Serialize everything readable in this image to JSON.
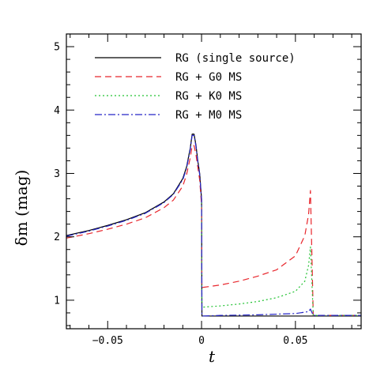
{
  "chart_data": {
    "type": "line",
    "xlabel": "t",
    "ylabel": "δm (mag)",
    "xlim": [
      -0.072,
      0.085
    ],
    "ylim": [
      0.55,
      5.2
    ],
    "x_ticks": [
      -0.05,
      0,
      0.05
    ],
    "x_tick_labels": [
      "−0.05",
      "0",
      "0.05"
    ],
    "y_ticks": [
      1,
      2,
      3,
      4,
      5
    ],
    "y_tick_labels": [
      "1",
      "2",
      "3",
      "4",
      "5"
    ],
    "legend_position": "top-left",
    "series": [
      {
        "name": "RG (single source)",
        "color": "#000000",
        "dash": "solid",
        "x": [
          -0.072,
          -0.06,
          -0.05,
          -0.04,
          -0.03,
          -0.02,
          -0.015,
          -0.01,
          -0.008,
          -0.006,
          -0.005,
          -0.004,
          -0.003,
          -0.002,
          -0.001,
          0.0,
          0.0002,
          0.01,
          0.03,
          0.05,
          0.058,
          0.06,
          0.085
        ],
        "y": [
          2.02,
          2.1,
          2.18,
          2.27,
          2.38,
          2.55,
          2.68,
          2.92,
          3.1,
          3.4,
          3.62,
          3.62,
          3.45,
          3.2,
          3.0,
          2.6,
          0.75,
          0.75,
          0.75,
          0.75,
          0.75,
          0.75,
          0.75
        ]
      },
      {
        "name": "RG + G0 MS",
        "color": "#e8262c",
        "dash": "8,5",
        "x": [
          -0.072,
          -0.06,
          -0.05,
          -0.04,
          -0.03,
          -0.02,
          -0.015,
          -0.01,
          -0.008,
          -0.006,
          -0.005,
          -0.004,
          -0.003,
          -0.002,
          -0.001,
          0.0,
          0.0002,
          0.01,
          0.02,
          0.03,
          0.04,
          0.05,
          0.055,
          0.057,
          0.058,
          0.0595,
          0.06,
          0.085
        ],
        "y": [
          1.98,
          2.05,
          2.12,
          2.2,
          2.3,
          2.46,
          2.58,
          2.8,
          2.98,
          3.25,
          3.44,
          3.44,
          3.3,
          3.1,
          2.9,
          2.5,
          1.2,
          1.24,
          1.3,
          1.38,
          1.48,
          1.7,
          2.02,
          2.35,
          2.73,
          0.76,
          0.76,
          0.76
        ]
      },
      {
        "name": "RG + K0 MS",
        "color": "#22c232",
        "dash": "2,3",
        "x": [
          0.0,
          0.0002,
          0.01,
          0.02,
          0.03,
          0.04,
          0.05,
          0.055,
          0.057,
          0.058,
          0.0595,
          0.06,
          0.085
        ],
        "y": [
          2.55,
          0.89,
          0.91,
          0.94,
          0.98,
          1.04,
          1.14,
          1.3,
          1.55,
          1.84,
          0.76,
          0.76,
          0.76
        ]
      },
      {
        "name": "RG + M0 MS",
        "color": "#2626c8",
        "dash": "9,3,2,3",
        "x": [
          -0.072,
          -0.06,
          -0.05,
          -0.04,
          -0.03,
          -0.02,
          -0.015,
          -0.01,
          -0.008,
          -0.006,
          -0.005,
          -0.004,
          -0.003,
          -0.002,
          -0.001,
          0.0,
          0.0002,
          0.01,
          0.03,
          0.05,
          0.057,
          0.058,
          0.0595,
          0.06,
          0.085
        ],
        "y": [
          2.01,
          2.09,
          2.17,
          2.26,
          2.37,
          2.54,
          2.67,
          2.9,
          3.08,
          3.38,
          3.6,
          3.6,
          3.43,
          3.18,
          2.98,
          2.58,
          0.75,
          0.76,
          0.77,
          0.79,
          0.82,
          0.86,
          0.76,
          0.76,
          0.76
        ]
      }
    ]
  }
}
